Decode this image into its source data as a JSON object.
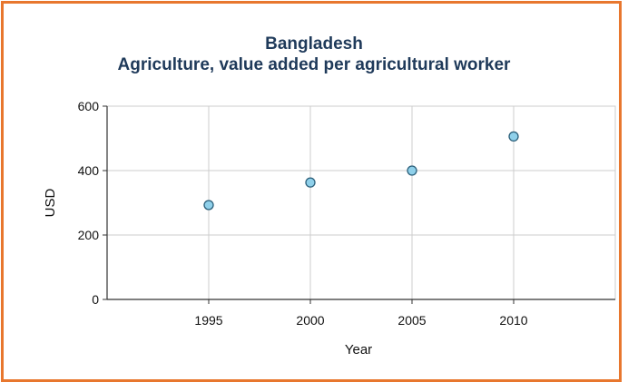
{
  "colors": {
    "frame": "#e8772e",
    "title": "#1f3a5a",
    "marker_fill": "#8fd0ea",
    "marker_stroke": "#2b5f7a",
    "grid": "#cccccc",
    "axis": "#333333"
  },
  "chart_data": {
    "type": "scatter",
    "title": "Bangladesh",
    "subtitle": "Agriculture, value added per agricultural worker",
    "xlabel": "Year",
    "ylabel": "USD",
    "xlim": [
      1990,
      2015
    ],
    "ylim": [
      0,
      600
    ],
    "xticks": [
      1995,
      2000,
      2005,
      2010
    ],
    "yticks": [
      0,
      200,
      400,
      600
    ],
    "grid": true,
    "legend": "none",
    "series": [
      {
        "x": [
          1995,
          2000,
          2005,
          2010
        ],
        "values": [
          293,
          363,
          400,
          506
        ]
      }
    ]
  }
}
